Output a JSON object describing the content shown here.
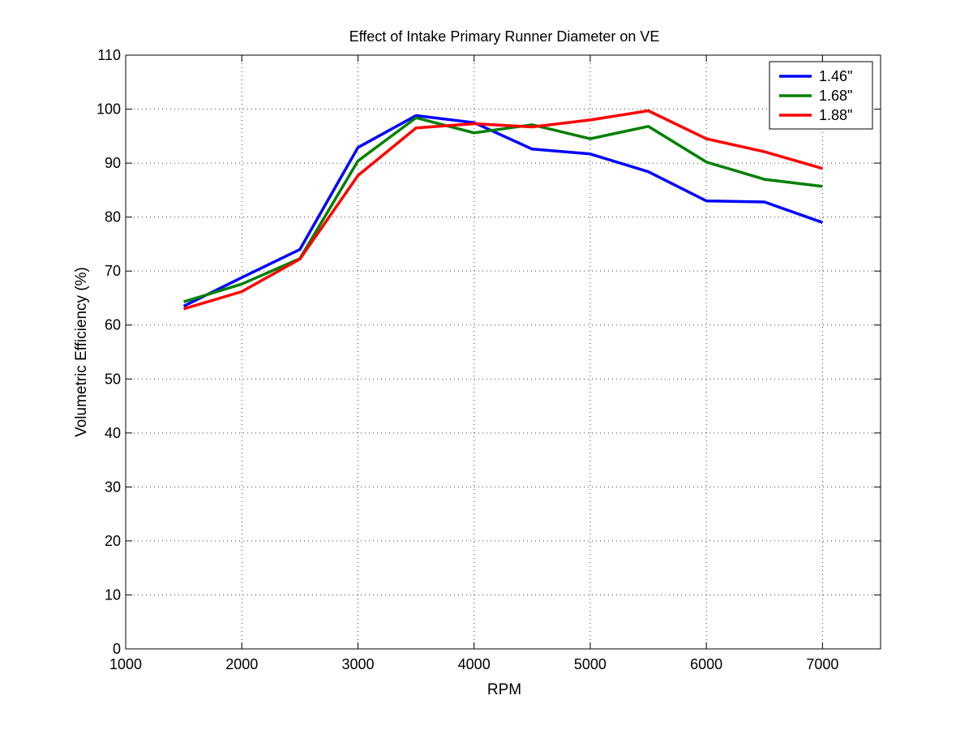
{
  "chart_data": {
    "type": "line",
    "title": "Effect of Intake Primary Runner Diameter on VE",
    "xlabel": "RPM",
    "ylabel": "Volumetric Efficiency (%)",
    "xlim": [
      1000,
      7500
    ],
    "ylim": [
      0,
      110
    ],
    "xticks": [
      1000,
      2000,
      3000,
      4000,
      5000,
      6000,
      7000
    ],
    "yticks": [
      0,
      10,
      20,
      30,
      40,
      50,
      60,
      70,
      80,
      90,
      100,
      110
    ],
    "grid": true,
    "legend_position": "top-right",
    "x": [
      1500,
      2000,
      2500,
      3000,
      3500,
      4000,
      4500,
      5000,
      5500,
      6000,
      6500,
      7000
    ],
    "series": [
      {
        "name": "1.46\"",
        "color": "#0000ff",
        "values": [
          63.5,
          68.8,
          74.0,
          92.9,
          98.8,
          97.5,
          92.6,
          91.7,
          88.4,
          83.0,
          82.8,
          79.0
        ]
      },
      {
        "name": "1.68\"",
        "color": "#008000",
        "values": [
          64.3,
          67.6,
          72.3,
          90.4,
          98.4,
          95.6,
          97.1,
          94.5,
          96.8,
          90.2,
          87.0,
          85.7
        ]
      },
      {
        "name": "1.88\"",
        "color": "#ff0000",
        "values": [
          63.0,
          66.2,
          72.2,
          87.7,
          96.5,
          97.3,
          96.7,
          98.0,
          99.7,
          94.5,
          92.1,
          89.0
        ]
      }
    ]
  }
}
